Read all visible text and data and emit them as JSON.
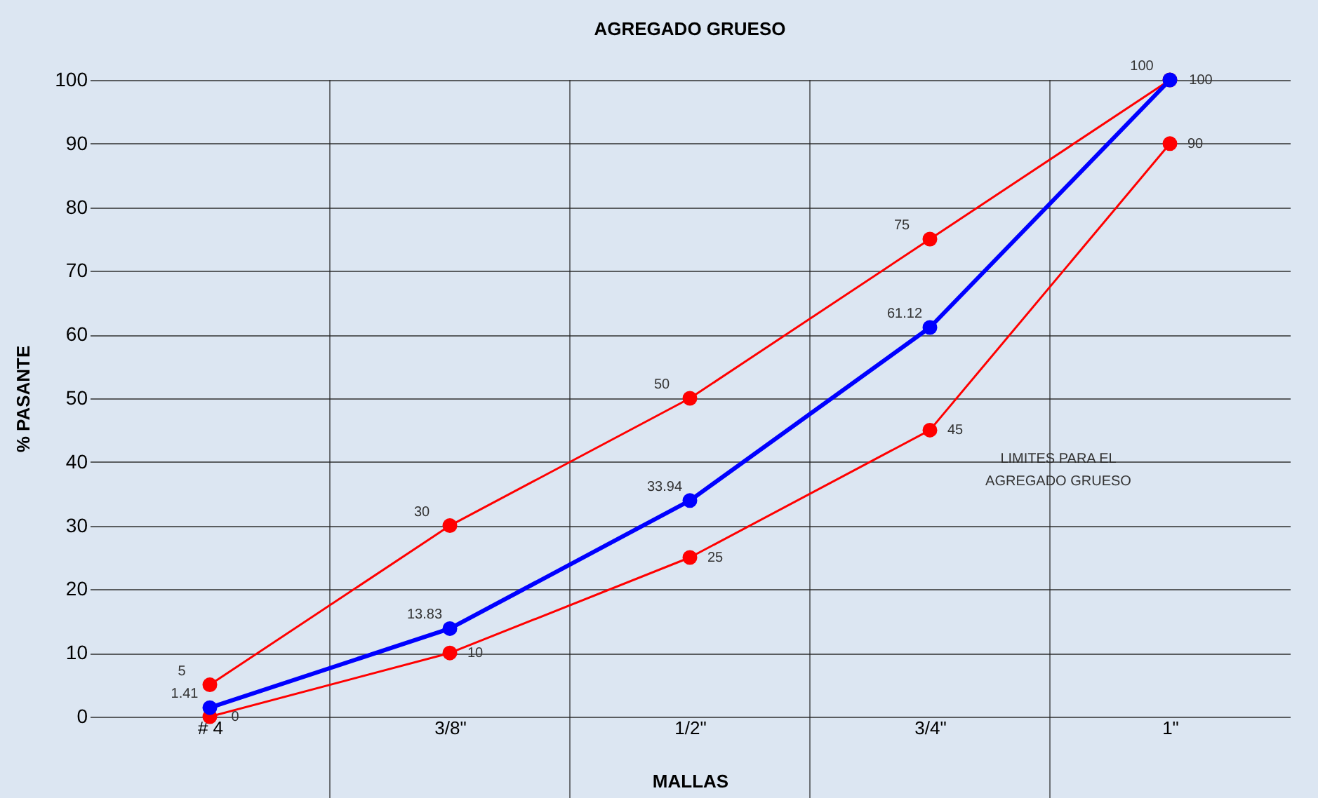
{
  "chart_data": {
    "type": "line",
    "title": "AGREGADO  GRUESO",
    "xlabel": "MALLAS",
    "ylabel": "% PASANTE",
    "categories": [
      "# 4",
      "3/8\"",
      "1/2\"",
      "3/4\"",
      "1\""
    ],
    "series": [
      {
        "color": "#ff0000",
        "values": [
          5,
          30,
          50,
          75,
          100
        ]
      },
      {
        "color": "#ff0000",
        "values": [
          0,
          10,
          25,
          45,
          90
        ]
      },
      {
        "color": "#0000ff",
        "values": [
          1.41,
          13.83,
          33.94,
          61.12,
          100
        ]
      }
    ],
    "ylim": [
      0,
      100
    ],
    "yticks": [
      0,
      10,
      20,
      30,
      40,
      50,
      60,
      70,
      80,
      90,
      100
    ],
    "grid": true,
    "marker": "circle",
    "data_labels": true,
    "annotations": [
      "LIMITES PARA EL AGREGADO GRUESO"
    ]
  }
}
